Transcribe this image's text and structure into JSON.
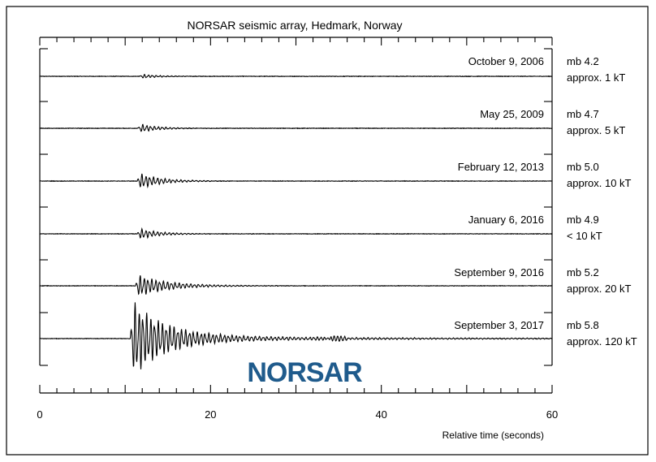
{
  "chart_data": {
    "type": "line",
    "title": "NORSAR seismic array, Hedmark, Norway",
    "xlabel": "Relative time (seconds)",
    "ylabel": "",
    "xlim": [
      0,
      60
    ],
    "x_ticks": [
      "0",
      "20",
      "40",
      "60"
    ],
    "grid": false,
    "logo_text": "NORSAR",
    "series": [
      {
        "name": "October 9, 2006",
        "magnitude": "mb 4.2",
        "yield": "approx. 1 kT",
        "onset": 11.7,
        "peak_amplitude": 0.06,
        "decay": 2.0,
        "duration": 3.0
      },
      {
        "name": "May 25, 2009",
        "magnitude": "mb 4.7",
        "yield": "approx. 5 kT",
        "onset": 11.5,
        "peak_amplitude": 0.12,
        "decay": 2.2,
        "duration": 4.0
      },
      {
        "name": "February 12, 2013",
        "magnitude": "mb 5.0",
        "yield": "approx. 10 kT",
        "onset": 11.4,
        "peak_amplitude": 0.22,
        "decay": 2.5,
        "duration": 5.0
      },
      {
        "name": "January 6, 2016",
        "magnitude": "mb 4.9",
        "yield": "< 10 kT",
        "onset": 11.4,
        "peak_amplitude": 0.15,
        "decay": 2.3,
        "duration": 4.5
      },
      {
        "name": "September 9, 2016",
        "magnitude": "mb 5.2",
        "yield": "approx. 20 kT",
        "onset": 11.2,
        "peak_amplitude": 0.3,
        "decay": 3.5,
        "duration": 10.0
      },
      {
        "name": "September 3, 2017",
        "magnitude": "mb 5.8",
        "yield": "approx. 120 kT",
        "onset": 10.6,
        "peak_amplitude": 1.0,
        "decay": 4.0,
        "duration": 49.0
      }
    ]
  }
}
